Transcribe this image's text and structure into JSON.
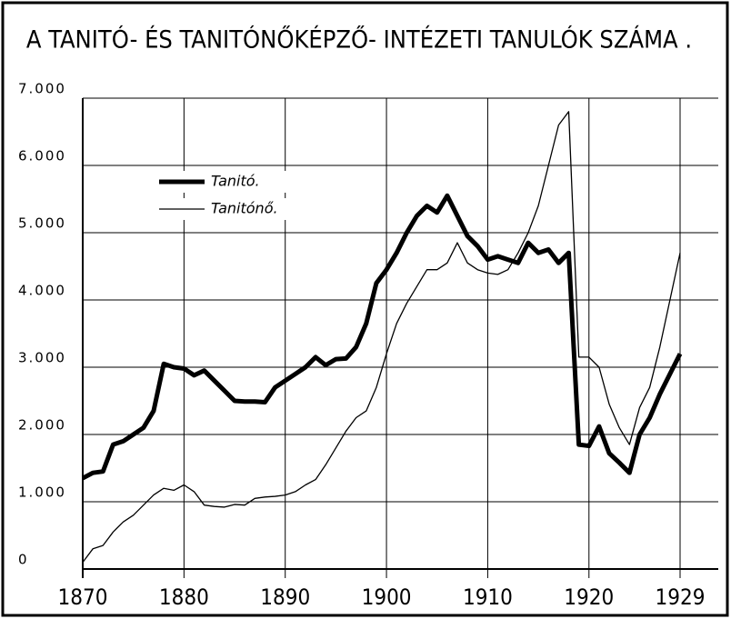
{
  "chart_data": {
    "type": "line",
    "title": "A TANITÓ- ÉS TANITÓNŐKÉPZŐ- INTÉZETI TANULÓK SZÁMA .",
    "x": [
      1870,
      1871,
      1872,
      1873,
      1874,
      1875,
      1876,
      1877,
      1878,
      1879,
      1880,
      1881,
      1882,
      1883,
      1884,
      1885,
      1886,
      1887,
      1888,
      1889,
      1890,
      1891,
      1892,
      1893,
      1894,
      1895,
      1896,
      1897,
      1898,
      1899,
      1900,
      1901,
      1902,
      1903,
      1904,
      1905,
      1906,
      1907,
      1908,
      1909,
      1910,
      1911,
      1912,
      1913,
      1914,
      1915,
      1916,
      1917,
      1918,
      1919,
      1920,
      1921,
      1922,
      1923,
      1924,
      1925,
      1926,
      1927,
      1928,
      1929
    ],
    "series": [
      {
        "name": "Tanitó.",
        "color": "#000000",
        "values": [
          1350,
          1430,
          1450,
          1850,
          1900,
          2000,
          2100,
          2350,
          3050,
          3000,
          2980,
          2880,
          2950,
          2800,
          2650,
          2500,
          2490,
          2490,
          2480,
          2700,
          2800,
          2900,
          3000,
          3150,
          3030,
          3120,
          3130,
          3300,
          3650,
          4250,
          4450,
          4700,
          5000,
          5250,
          5400,
          5300,
          5550,
          5250,
          4950,
          4800,
          4600,
          4650,
          4600,
          4550,
          4850,
          4700,
          4750,
          4550,
          4700,
          1850,
          1830,
          2120,
          1720,
          1580,
          1430,
          2000,
          2250,
          2600,
          2900,
          3200
        ]
      },
      {
        "name": "Tanitónő.",
        "color": "#000000",
        "values": [
          100,
          300,
          350,
          550,
          700,
          800,
          950,
          1100,
          1200,
          1170,
          1250,
          1150,
          950,
          930,
          920,
          960,
          950,
          1050,
          1070,
          1080,
          1100,
          1150,
          1250,
          1330,
          1550,
          1800,
          2050,
          2250,
          2350,
          2700,
          3200,
          3650,
          3950,
          4200,
          4450,
          4450,
          4550,
          4850,
          4550,
          4450,
          4400,
          4380,
          4450,
          4700,
          5000,
          5400,
          6000,
          6600,
          6800,
          3150,
          3150,
          3000,
          2450,
          2100,
          1850,
          2400,
          2700,
          3300,
          4000,
          4700
        ]
      }
    ],
    "xlim": [
      1870,
      1929
    ],
    "xticks": [
      1870,
      1880,
      1890,
      1900,
      1910,
      1920,
      1929
    ],
    "ylim": [
      0,
      7000
    ],
    "yticks": [
      0,
      {
        "value": 1000,
        "label": "1.000"
      },
      {
        "value": 2000,
        "label": "2.000"
      },
      {
        "value": 3000,
        "label": "3.000"
      },
      {
        "value": 4000,
        "label": "4.000"
      },
      {
        "value": 5000,
        "label": "5.000"
      },
      {
        "value": 6000,
        "label": "6.000"
      },
      {
        "value": 7000,
        "label": "7.000"
      }
    ],
    "grid": true,
    "legend": "upper left"
  }
}
